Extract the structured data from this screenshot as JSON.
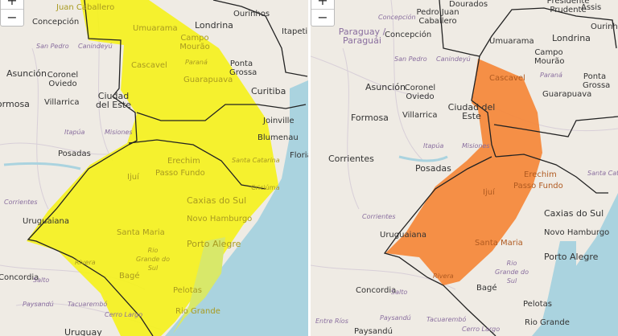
{
  "maps": [
    {
      "alert_color": "#f5f219",
      "zoom_in": "+",
      "zoom_out": "−",
      "labels": [
        "Juan Caballero",
        "Concepción",
        "Londrina",
        "Ourinhos",
        "Itapetini",
        "San Pedro",
        "Canindeyú",
        "Umuarama",
        "Campo Mourão",
        "Paraná",
        "Asunción",
        "Coronel Oviedo",
        "Cascavel",
        "Ponta Grossa",
        "Guarapuava",
        "Curitiba",
        "Ciudad del Este",
        "Villarrica",
        "Formosa",
        "Joinville",
        "Itapúa",
        "Misiones",
        "Blumenau",
        "Posadas",
        "Erechim",
        "Santa Catarina",
        "Floria",
        "Passo Fundo",
        "Ijuí",
        "Corrientes",
        "Caxias do Sul",
        "Criciúma",
        "Uruguaiana",
        "Novo Hamburgo",
        "Santa Maria",
        "Porto Alegre",
        "Rio Grande do Sul",
        "Rivera",
        "Concordia",
        "Salto",
        "Bagé",
        "Pelotas",
        "Paysandú",
        "Tacuarembó",
        "Rio Grande",
        "Cerro Largo",
        "Uruguay"
      ]
    },
    {
      "alert_color": "#f5883a",
      "zoom_in": "+",
      "zoom_out": "−",
      "labels": [
        "Dourados",
        "Presidente Prudente",
        "Assis",
        "Pedro Juan Caballero",
        "Concepción",
        "Paraguay / Paraguái",
        "Concepción",
        "Umuarama",
        "Londrina",
        "Ourinhos",
        "Campo Mourão",
        "San Pedro",
        "Canindeyú",
        "Cascavel",
        "Paraná",
        "Ponta Grossa",
        "Asunción",
        "Coronel Oviedo",
        "Guarapuava",
        "Ciudad del Este",
        "Formosa",
        "Villarrica",
        "Itapúa",
        "Misiones",
        "Corrientes",
        "Posadas",
        "Erechim",
        "Passo Fundo",
        "Ijuí",
        "Corrientes",
        "Caxias do Sul",
        "Uruguaiana",
        "Novo Hamburgo",
        "Santa Maria",
        "Porto Alegre",
        "Rio Grande do Sul",
        "Rivera",
        "Concordia",
        "Salto",
        "Bagé",
        "Pelotas",
        "Entre Ríos",
        "Paysandú",
        "Tacuarembó",
        "Rio Grande",
        "Paysandú",
        "Cerro Largo",
        "Santa Catarina"
      ]
    }
  ]
}
